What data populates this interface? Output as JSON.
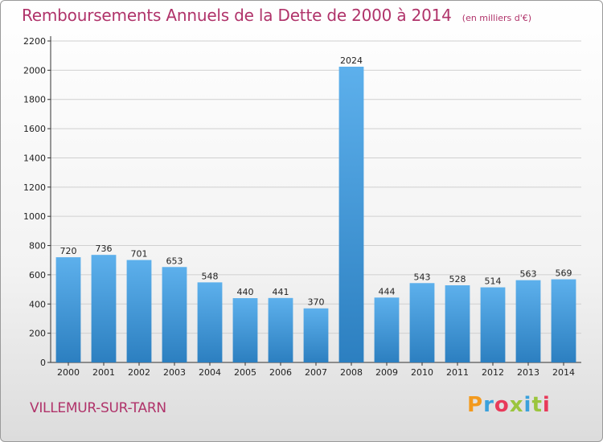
{
  "chart_data": {
    "type": "bar",
    "title": "Remboursements Annuels de la Dette de 2000 à 2014",
    "subtitle": "(en milliers d'€)",
    "categories": [
      "2000",
      "2001",
      "2002",
      "2003",
      "2004",
      "2005",
      "2006",
      "2007",
      "2008",
      "2009",
      "2010",
      "2011",
      "2012",
      "2013",
      "2014"
    ],
    "values": [
      720,
      736,
      701,
      653,
      548,
      440,
      441,
      370,
      2024,
      444,
      543,
      528,
      514,
      563,
      569
    ],
    "ylim": [
      0,
      2200
    ],
    "yticks": [
      0,
      200,
      400,
      600,
      800,
      1000,
      1200,
      1400,
      1600,
      1800,
      2000,
      2200
    ],
    "xlabel": "",
    "ylabel": "",
    "grid": true,
    "legend": "none",
    "bar_color": "#3a95dc"
  },
  "footer": {
    "commune": "VILLEMUR-SUR-TARN",
    "logo_text": "Proxiti",
    "logo_colors": [
      "#f39a1e",
      "#3aa1dc",
      "#e83a5a",
      "#9bc53d",
      "#3aa1dc",
      "#9bc53d",
      "#e83a5a"
    ]
  },
  "colors": {
    "title": "#b0336a",
    "gridline": "#d0d0d0"
  }
}
